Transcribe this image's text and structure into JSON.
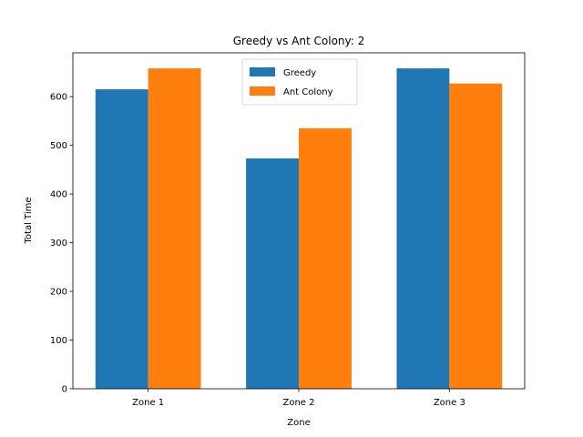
{
  "chart_data": {
    "type": "bar",
    "title": "Greedy vs Ant Colony: 2",
    "xlabel": "Zone",
    "ylabel": "Total Time",
    "categories": [
      "Zone 1",
      "Zone 2",
      "Zone 3"
    ],
    "series": [
      {
        "name": "Greedy",
        "values": [
          615,
          473,
          658
        ],
        "color": "#1f77b4"
      },
      {
        "name": "Ant Colony",
        "values": [
          658,
          535,
          627
        ],
        "color": "#ff7f0e"
      }
    ],
    "ylim": [
      0,
      690
    ],
    "yticks": [
      0,
      100,
      200,
      300,
      400,
      500,
      600
    ],
    "grid": false,
    "legend_position": "top-center"
  }
}
